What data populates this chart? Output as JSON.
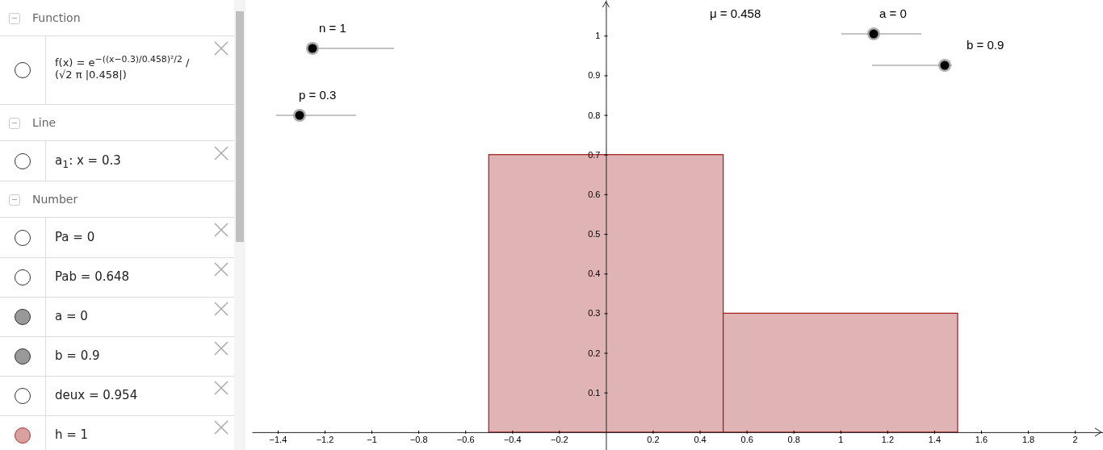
{
  "chart_data": [
    {
      "type": "other",
      "annotations": [
        "Function",
        "f(x) = e$^{−((x−0.3)/0.458)²/2}$ / (√2 π |0.458|)",
        "Line",
        "a$_{1}$: x = 0.3",
        "Number",
        "Pa = 0",
        "Pab = 0.648",
        "a = 0",
        "b = 0.9",
        "deux = 0.954",
        "h = 1"
      ]
    },
    {
      "type": "histogram",
      "bins": [
        -0.5,
        0.5,
        1.5
      ],
      "values": [
        0.7,
        0.3
      ],
      "color": "#e0b4b4",
      "xlim": [
        -1.51,
        2.12
      ],
      "ylim": [
        -0.045,
        1.09
      ],
      "xticks": [
        -1.4,
        -1.2,
        -1,
        -0.8,
        -0.6,
        -0.4,
        -0.2,
        0.2,
        0.4,
        0.6,
        0.8,
        1,
        1.2,
        1.4,
        1.6,
        1.8,
        2
      ],
      "yticks": [
        0.1,
        0.2,
        0.3,
        0.4,
        0.5,
        0.6,
        0.7,
        0.8,
        0.9,
        1
      ],
      "grid": false,
      "annotations": [
        "n = 1",
        "p = 0.3",
        "μ = 0.458",
        "a = 0",
        "b = 0.9"
      ]
    }
  ]
}
